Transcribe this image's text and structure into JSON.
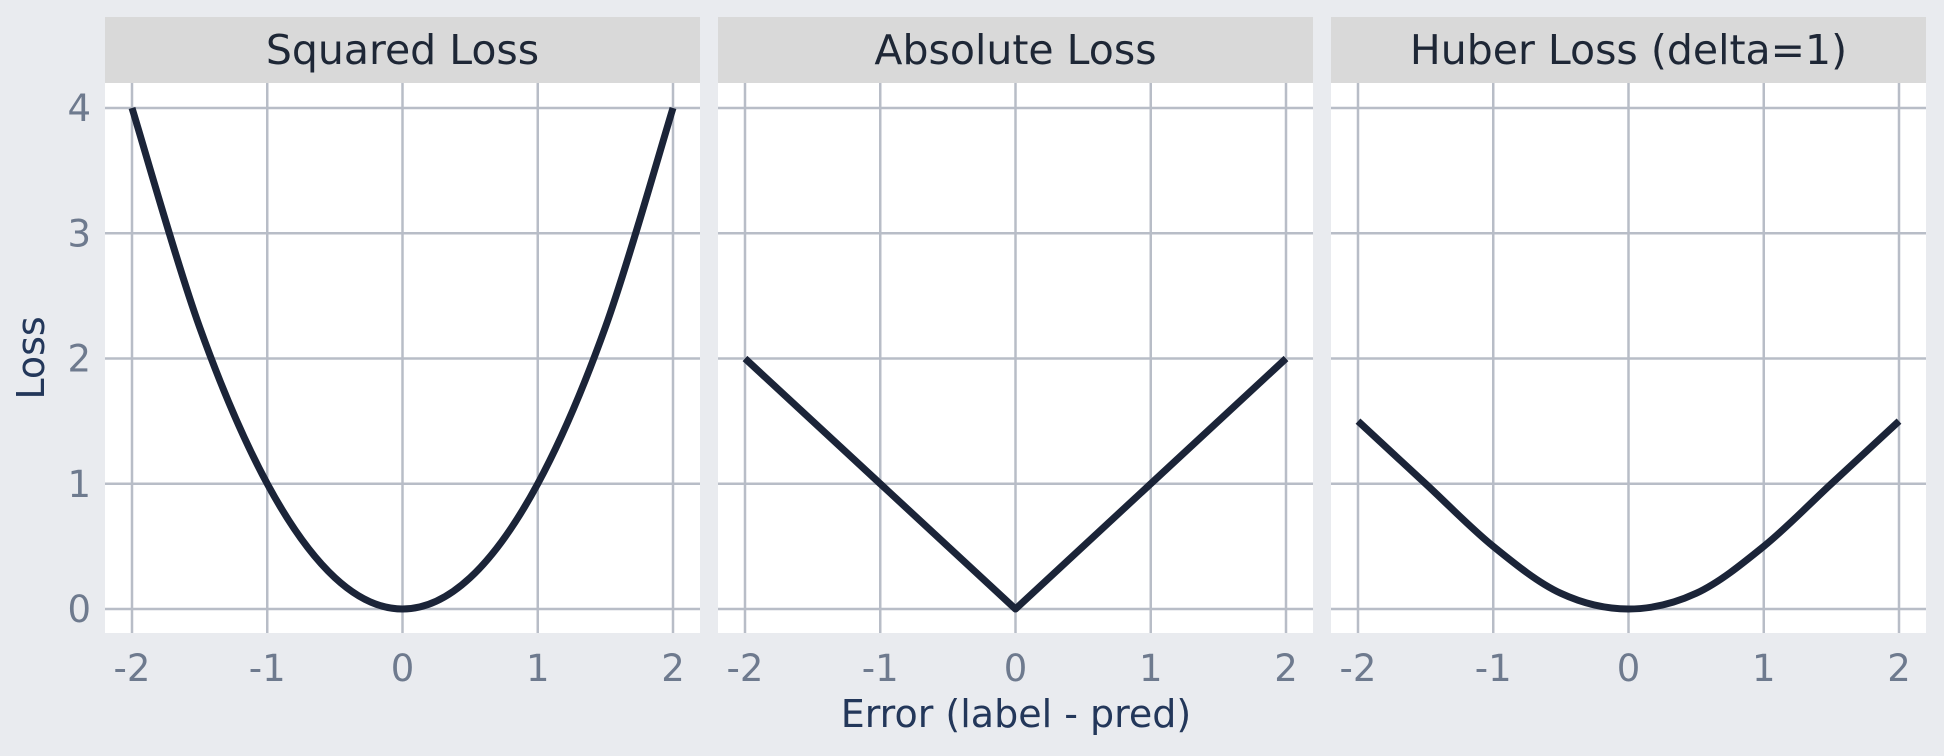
{
  "chart_data": {
    "type": "line",
    "xlabel": "Error (label - pred)",
    "ylabel": "Loss",
    "xlim": [
      -2,
      2
    ],
    "ylim": [
      0,
      4
    ],
    "x_ticks": [
      "-2",
      "-1",
      "0",
      "1",
      "2"
    ],
    "y_ticks": [
      "0",
      "1",
      "2",
      "3",
      "4"
    ],
    "grid": true,
    "line_color": "#1b2438",
    "panels": [
      {
        "title": "Squared Loss",
        "x": [
          -2,
          -1.5,
          -1,
          -0.5,
          0,
          0.5,
          1,
          1.5,
          2
        ],
        "y": [
          4,
          2.25,
          1,
          0.25,
          0,
          0.25,
          1,
          2.25,
          4
        ]
      },
      {
        "title": "Absolute Loss",
        "x": [
          -2,
          -1,
          0,
          1,
          2
        ],
        "y": [
          2,
          1,
          0,
          1,
          2
        ]
      },
      {
        "title": "Huber Loss (delta=1)",
        "x": [
          -2,
          -1.5,
          -1,
          -0.5,
          0,
          0.5,
          1,
          1.5,
          2
        ],
        "y": [
          1.5,
          1,
          0.5,
          0.125,
          0,
          0.125,
          0.5,
          1,
          1.5
        ]
      }
    ]
  }
}
